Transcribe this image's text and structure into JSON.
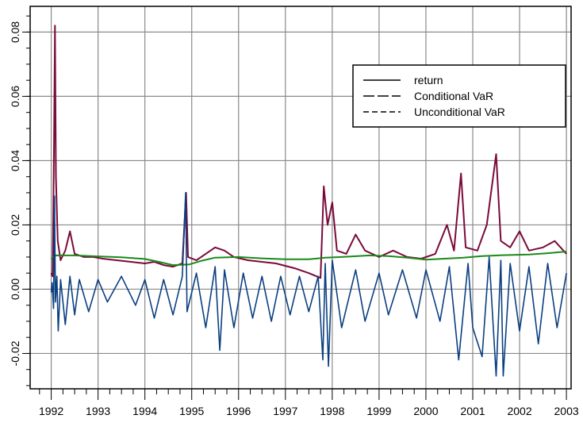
{
  "chart_data": {
    "type": "line",
    "title": "",
    "xlabel": "",
    "ylabel": "",
    "xlim": [
      1991.55,
      2003.1
    ],
    "ylim": [
      -0.031,
      0.088
    ],
    "grid": true,
    "legend_position": "top-right",
    "x_ticks": [
      "1992",
      "1993",
      "1994",
      "1995",
      "1996",
      "1997",
      "1998",
      "1999",
      "2000",
      "2001",
      "2002",
      "2003"
    ],
    "y_ticks": [
      "-0.02",
      "0.00",
      "0.02",
      "0.04",
      "0.06",
      "0.08"
    ],
    "legend": [
      {
        "label": "return",
        "dash": "solid"
      },
      {
        "label": "Conditional VaR",
        "dash": "longdash"
      },
      {
        "label": "Unconditional VaR",
        "dash": "dashed"
      }
    ],
    "colors": {
      "return": "#0b3f80",
      "conditional_var": "#7a0a3a",
      "unconditional_var": "#1a8a1a",
      "grid": "#8a8a8a",
      "frame": "#000000"
    },
    "series": [
      {
        "name": "Conditional VaR",
        "color": "#7a0a3a",
        "points": [
          [
            1992.0,
            0.005
          ],
          [
            1992.03,
            0.004
          ],
          [
            1992.06,
            0.045
          ],
          [
            1992.08,
            0.082
          ],
          [
            1992.1,
            0.035
          ],
          [
            1992.14,
            0.015
          ],
          [
            1992.2,
            0.009
          ],
          [
            1992.3,
            0.012
          ],
          [
            1992.4,
            0.018
          ],
          [
            1992.5,
            0.011
          ],
          [
            1992.7,
            0.01
          ],
          [
            1992.9,
            0.01
          ],
          [
            1993.1,
            0.0095
          ],
          [
            1993.4,
            0.009
          ],
          [
            1993.7,
            0.0085
          ],
          [
            1994.0,
            0.008
          ],
          [
            1994.2,
            0.0085
          ],
          [
            1994.4,
            0.0075
          ],
          [
            1994.6,
            0.007
          ],
          [
            1994.8,
            0.008
          ],
          [
            1994.88,
            0.03
          ],
          [
            1994.92,
            0.01
          ],
          [
            1995.1,
            0.009
          ],
          [
            1995.3,
            0.011
          ],
          [
            1995.5,
            0.013
          ],
          [
            1995.7,
            0.012
          ],
          [
            1995.9,
            0.01
          ],
          [
            1996.2,
            0.009
          ],
          [
            1996.5,
            0.0085
          ],
          [
            1996.8,
            0.008
          ],
          [
            1997.2,
            0.0065
          ],
          [
            1997.5,
            0.005
          ],
          [
            1997.75,
            0.0035
          ],
          [
            1997.82,
            0.032
          ],
          [
            1997.9,
            0.02
          ],
          [
            1998.0,
            0.027
          ],
          [
            1998.1,
            0.012
          ],
          [
            1998.3,
            0.011
          ],
          [
            1998.5,
            0.017
          ],
          [
            1998.7,
            0.012
          ],
          [
            1999.0,
            0.01
          ],
          [
            1999.3,
            0.012
          ],
          [
            1999.6,
            0.01
          ],
          [
            1999.9,
            0.0095
          ],
          [
            2000.2,
            0.011
          ],
          [
            2000.45,
            0.02
          ],
          [
            2000.6,
            0.012
          ],
          [
            2000.75,
            0.036
          ],
          [
            2000.85,
            0.013
          ],
          [
            2001.1,
            0.012
          ],
          [
            2001.3,
            0.02
          ],
          [
            2001.5,
            0.042
          ],
          [
            2001.6,
            0.015
          ],
          [
            2001.8,
            0.013
          ],
          [
            2002.0,
            0.018
          ],
          [
            2002.2,
            0.012
          ],
          [
            2002.5,
            0.013
          ],
          [
            2002.75,
            0.015
          ],
          [
            2003.0,
            0.011
          ]
        ]
      },
      {
        "name": "Unconditional VaR",
        "color": "#1a8a1a",
        "points": [
          [
            1992.0,
            0.0095
          ],
          [
            1992.1,
            0.0105
          ],
          [
            1992.5,
            0.0105
          ],
          [
            1993.0,
            0.0102
          ],
          [
            1993.5,
            0.0099
          ],
          [
            1994.0,
            0.0094
          ],
          [
            1994.3,
            0.0085
          ],
          [
            1994.6,
            0.0075
          ],
          [
            1994.95,
            0.0077
          ],
          [
            1995.2,
            0.0088
          ],
          [
            1995.5,
            0.0098
          ],
          [
            1996.0,
            0.01
          ],
          [
            1996.5,
            0.0096
          ],
          [
            1997.0,
            0.0093
          ],
          [
            1997.5,
            0.0093
          ],
          [
            1997.85,
            0.0098
          ],
          [
            1998.2,
            0.01
          ],
          [
            1998.8,
            0.0105
          ],
          [
            1999.2,
            0.0103
          ],
          [
            1999.6,
            0.0098
          ],
          [
            2000.0,
            0.0092
          ],
          [
            2000.4,
            0.0095
          ],
          [
            2000.8,
            0.0098
          ],
          [
            2001.2,
            0.0103
          ],
          [
            2001.7,
            0.0106
          ],
          [
            2002.2,
            0.0108
          ],
          [
            2002.6,
            0.0112
          ],
          [
            2003.0,
            0.0117
          ]
        ]
      },
      {
        "name": "return",
        "color": "#0b3f80",
        "points": [
          [
            1992.0,
            -0.001
          ],
          [
            1992.02,
            0.002
          ],
          [
            1992.05,
            -0.006
          ],
          [
            1992.07,
            0.029
          ],
          [
            1992.09,
            -0.004
          ],
          [
            1992.12,
            0.004
          ],
          [
            1992.15,
            -0.013
          ],
          [
            1992.2,
            0.003
          ],
          [
            1992.3,
            -0.011
          ],
          [
            1992.4,
            0.004
          ],
          [
            1992.5,
            -0.008
          ],
          [
            1992.6,
            0.003
          ],
          [
            1992.8,
            -0.007
          ],
          [
            1993.0,
            0.003
          ],
          [
            1993.2,
            -0.004
          ],
          [
            1993.5,
            0.004
          ],
          [
            1993.8,
            -0.005
          ],
          [
            1994.0,
            0.003
          ],
          [
            1994.2,
            -0.009
          ],
          [
            1994.4,
            0.003
          ],
          [
            1994.6,
            -0.008
          ],
          [
            1994.8,
            0.004
          ],
          [
            1994.87,
            0.03
          ],
          [
            1994.9,
            -0.007
          ],
          [
            1995.1,
            0.005
          ],
          [
            1995.3,
            -0.012
          ],
          [
            1995.5,
            0.007
          ],
          [
            1995.6,
            -0.019
          ],
          [
            1995.7,
            0.006
          ],
          [
            1995.9,
            -0.012
          ],
          [
            1996.1,
            0.005
          ],
          [
            1996.3,
            -0.009
          ],
          [
            1996.5,
            0.004
          ],
          [
            1996.7,
            -0.01
          ],
          [
            1996.9,
            0.004
          ],
          [
            1997.1,
            -0.008
          ],
          [
            1997.3,
            0.004
          ],
          [
            1997.5,
            -0.007
          ],
          [
            1997.7,
            0.004
          ],
          [
            1997.8,
            -0.022
          ],
          [
            1997.85,
            0.008
          ],
          [
            1997.92,
            -0.024
          ],
          [
            1998.0,
            0.009
          ],
          [
            1998.2,
            -0.012
          ],
          [
            1998.5,
            0.006
          ],
          [
            1998.7,
            -0.01
          ],
          [
            1999.0,
            0.005
          ],
          [
            1999.2,
            -0.008
          ],
          [
            1999.5,
            0.006
          ],
          [
            1999.8,
            -0.009
          ],
          [
            2000.0,
            0.006
          ],
          [
            2000.3,
            -0.01
          ],
          [
            2000.5,
            0.007
          ],
          [
            2000.7,
            -0.022
          ],
          [
            2000.9,
            0.008
          ],
          [
            2001.0,
            -0.012
          ],
          [
            2001.2,
            -0.021
          ],
          [
            2001.35,
            0.01
          ],
          [
            2001.5,
            -0.027
          ],
          [
            2001.6,
            0.009
          ],
          [
            2001.65,
            -0.027
          ],
          [
            2001.8,
            0.008
          ],
          [
            2002.0,
            -0.013
          ],
          [
            2002.2,
            0.007
          ],
          [
            2002.4,
            -0.017
          ],
          [
            2002.6,
            0.008
          ],
          [
            2002.8,
            -0.012
          ],
          [
            2003.0,
            0.005
          ]
        ]
      }
    ]
  }
}
